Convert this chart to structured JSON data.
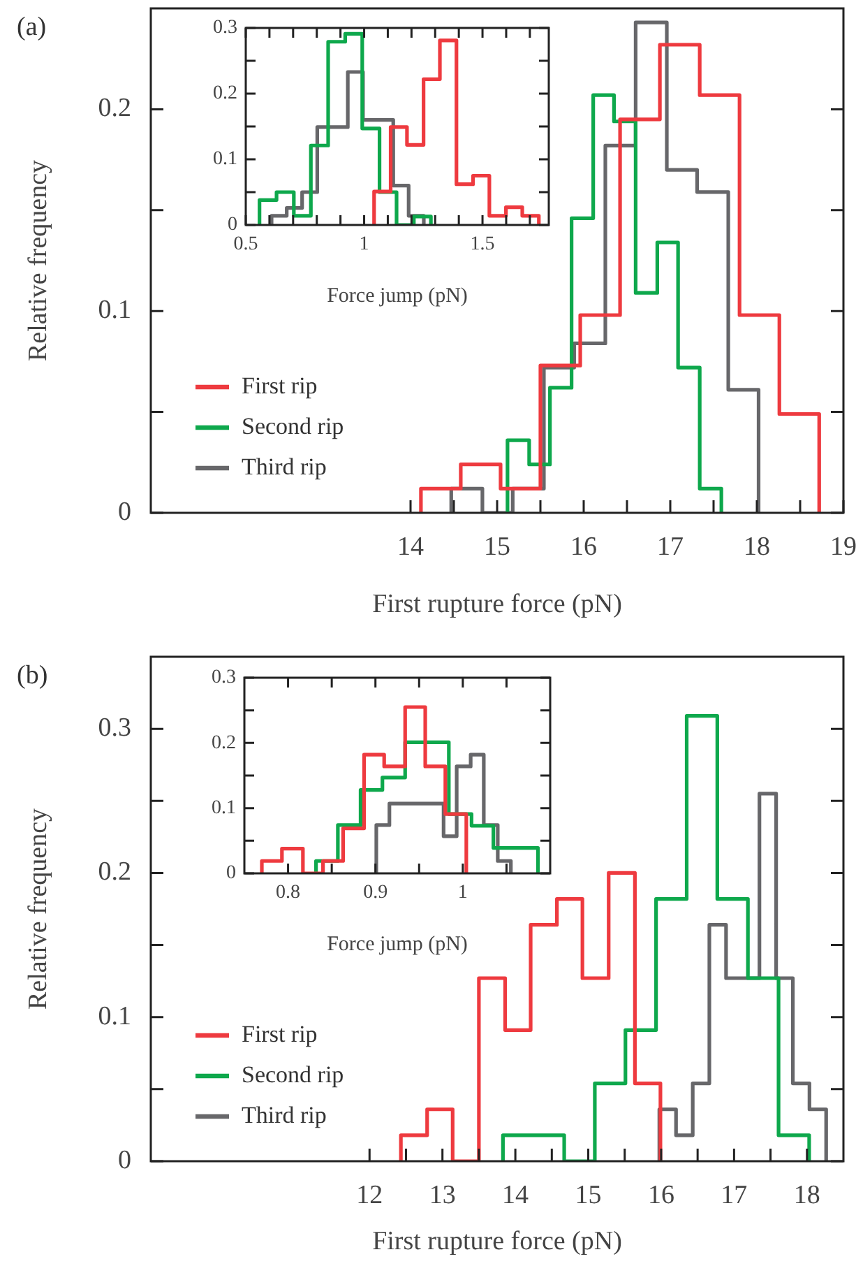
{
  "chart_data": [
    {
      "type": "step",
      "xlabel": "First rupture force (pN)",
      "ylabel": "Relative frequency",
      "annotations": [
        "(a)"
      ],
      "legend": "bottom left",
      "xlim": [
        11,
        19
      ],
      "ylim": [
        0,
        0.25
      ],
      "xticks": [
        14,
        {
          "value": 14.5,
          "label": null
        },
        15,
        {
          "value": 15.5,
          "label": null
        },
        16,
        {
          "value": 16.5,
          "label": null
        },
        17,
        {
          "value": 17.5,
          "label": null
        },
        18,
        {
          "value": 18.5,
          "label": null
        },
        19
      ],
      "yticks": [
        0,
        {
          "value": 0.05,
          "label": null
        },
        0.1,
        {
          "value": 0.15,
          "label": null
        },
        0.2
      ],
      "series": [
        {
          "name": "First rip",
          "color": "#ee3a3f",
          "x": [
            14.12,
            14.12,
            14.58,
            15.04,
            15.5,
            15.96,
            16.42,
            16.88,
            17.34,
            17.8,
            18.26,
            18.72
          ],
          "values": [
            0,
            0.012,
            0.024,
            0.012,
            0.073,
            0.098,
            0.195,
            0.232,
            0.207,
            0.098,
            0.049,
            0
          ]
        },
        {
          "name": "Second rip",
          "color": "#0ea84c",
          "x": [
            15.12,
            15.12,
            15.37,
            15.61,
            15.86,
            16.11,
            16.35,
            16.6,
            16.85,
            17.09,
            17.34,
            17.59
          ],
          "values": [
            0,
            0.036,
            0.024,
            0.062,
            0.146,
            0.207,
            0.194,
            0.109,
            0.134,
            0.072,
            0.012,
            0
          ]
        },
        {
          "name": "Third rip",
          "color": "#67676a",
          "x": [
            14.47,
            14.47,
            14.83,
            15.18,
            15.54,
            15.89,
            16.25,
            16.6,
            16.96,
            17.31,
            17.67,
            18.02
          ],
          "values": [
            0,
            0.012,
            0,
            0.012,
            0.072,
            0.084,
            0.182,
            0.243,
            0.17,
            0.159,
            0.061,
            0
          ]
        }
      ]
    },
    {
      "type": "step",
      "xlabel": "Force jump (pN)",
      "xlim": [
        0.5,
        1.78
      ],
      "ylim": [
        0,
        0.3
      ],
      "xticks": [
        0.5,
        {
          "value": 0.6,
          "label": null
        },
        {
          "value": 0.7,
          "label": null
        },
        {
          "value": 0.8,
          "label": null
        },
        {
          "value": 0.9,
          "label": null
        },
        1,
        {
          "value": 1.1,
          "label": null
        },
        {
          "value": 1.2,
          "label": null
        },
        {
          "value": 1.3,
          "label": null
        },
        {
          "value": 1.4,
          "label": null
        },
        1.5,
        {
          "value": 1.6,
          "label": null
        },
        {
          "value": 1.7,
          "label": null
        }
      ],
      "yticks": [
        0,
        {
          "value": 0.05,
          "label": null
        },
        0.1,
        {
          "value": 0.15,
          "label": null
        },
        0.2,
        {
          "value": 0.25,
          "label": null
        },
        0.3
      ],
      "series": [
        {
          "color": "#ee3a3f",
          "x": [
            1.042,
            1.042,
            1.112,
            1.181,
            1.251,
            1.32,
            1.39,
            1.46,
            1.529,
            1.599,
            1.668,
            1.738
          ],
          "values": [
            0,
            0.051,
            0.149,
            0.122,
            0.222,
            0.281,
            0.062,
            0.075,
            0.014,
            0.027,
            0.014,
            0
          ]
        },
        {
          "color": "#0ea84c",
          "x": [
            0.558,
            0.558,
            0.63,
            0.703,
            0.775,
            0.848,
            0.92,
            0.992,
            1.065,
            1.137,
            1.21,
            1.282
          ],
          "values": [
            0,
            0.038,
            0.05,
            0.014,
            0.121,
            0.279,
            0.291,
            0.147,
            0.05,
            0,
            0.013,
            0
          ]
        },
        {
          "color": "#67676a",
          "x": [
            0.609,
            0.609,
            0.673,
            0.738,
            0.802,
            0.866,
            0.931,
            0.995,
            1.059,
            1.123,
            1.188,
            1.252
          ],
          "values": [
            0,
            0.014,
            0.026,
            0.05,
            0.149,
            0.149,
            0.233,
            0.16,
            0.16,
            0.06,
            0.014,
            0
          ]
        }
      ]
    },
    {
      "type": "step",
      "xlabel": "First rupture force (pN)",
      "ylabel": "Relative frequency",
      "annotations": [
        "(b)"
      ],
      "legend": "bottom left",
      "xlim": [
        9,
        18.5
      ],
      "ylim": [
        0,
        0.35
      ],
      "xticks": [
        12,
        {
          "value": 12.5,
          "label": null
        },
        13,
        {
          "value": 13.5,
          "label": null
        },
        14,
        {
          "value": 14.5,
          "label": null
        },
        15,
        {
          "value": 15.5,
          "label": null
        },
        16,
        {
          "value": 16.5,
          "label": null
        },
        17,
        {
          "value": 17.5,
          "label": null
        },
        18
      ],
      "yticks": [
        0,
        {
          "value": 0.05,
          "label": null
        },
        0.1,
        {
          "value": 0.15,
          "label": null
        },
        0.2,
        {
          "value": 0.25,
          "label": null
        },
        0.3
      ],
      "series": [
        {
          "name": "First rip",
          "color": "#ee3a3f",
          "x": [
            12.43,
            12.43,
            12.79,
            13.14,
            13.5,
            13.86,
            14.21,
            14.57,
            14.92,
            15.28,
            15.64,
            15.99
          ],
          "values": [
            0,
            0.018,
            0.036,
            0,
            0.127,
            0.091,
            0.164,
            0.182,
            0.127,
            0.2,
            0.054,
            0
          ]
        },
        {
          "name": "Second rip",
          "color": "#0ea84c",
          "x": [
            13.83,
            13.83,
            14.25,
            14.67,
            15.09,
            15.51,
            15.93,
            16.35,
            16.77,
            17.19,
            17.61,
            18.03
          ],
          "values": [
            0,
            0.018,
            0.018,
            0,
            0.054,
            0.091,
            0.182,
            0.309,
            0.182,
            0.127,
            0.018,
            0
          ]
        },
        {
          "name": "Third rip",
          "color": "#67676a",
          "x": [
            15.975,
            15.975,
            16.204,
            16.433,
            16.661,
            16.89,
            17.119,
            17.348,
            17.577,
            17.806,
            18.034,
            18.263
          ],
          "values": [
            0,
            0.036,
            0.018,
            0.054,
            0.164,
            0.127,
            0.127,
            0.255,
            0.127,
            0.054,
            0.036,
            0
          ]
        }
      ]
    },
    {
      "type": "step",
      "xlabel": "Force jump (pN)",
      "xlim": [
        0.75,
        1.1
      ],
      "ylim": [
        0,
        0.3
      ],
      "xticks": [
        0.8,
        {
          "value": 0.85,
          "label": null
        },
        0.9,
        {
          "value": 0.95,
          "label": null
        },
        1,
        {
          "value": 1.05,
          "label": null
        }
      ],
      "yticks": [
        0,
        {
          "value": 0.05,
          "label": null
        },
        0.1,
        {
          "value": 0.15,
          "label": null
        },
        0.2,
        {
          "value": 0.25,
          "label": null
        },
        0.3
      ],
      "series": [
        {
          "color": "#ee3a3f",
          "x": [
            0.77,
            0.77,
            0.793,
            0.817,
            0.84,
            0.863,
            0.887,
            0.91,
            0.934,
            0.957,
            0.98,
            1.004
          ],
          "values": [
            0,
            0.019,
            0.038,
            0,
            0.019,
            0.069,
            0.182,
            0.164,
            0.255,
            0.164,
            0.091,
            0
          ]
        },
        {
          "color": "#0ea84c",
          "x": [
            0.832,
            0.832,
            0.857,
            0.883,
            0.908,
            0.934,
            0.959,
            0.984,
            1.01,
            1.035,
            1.061,
            1.086
          ],
          "values": [
            0,
            0.019,
            0.074,
            0.128,
            0.147,
            0.201,
            0.201,
            0.091,
            0.073,
            0.039,
            0.039,
            0
          ]
        },
        {
          "color": "#67676a",
          "x": [
            0.901,
            0.901,
            0.916,
            0.932,
            0.947,
            0.962,
            0.978,
            0.993,
            1.009,
            1.024,
            1.04,
            1.055
          ],
          "values": [
            0,
            0.074,
            0.107,
            0.107,
            0.107,
            0.107,
            0.057,
            0.164,
            0.182,
            0.074,
            0.019,
            0
          ]
        }
      ]
    }
  ]
}
